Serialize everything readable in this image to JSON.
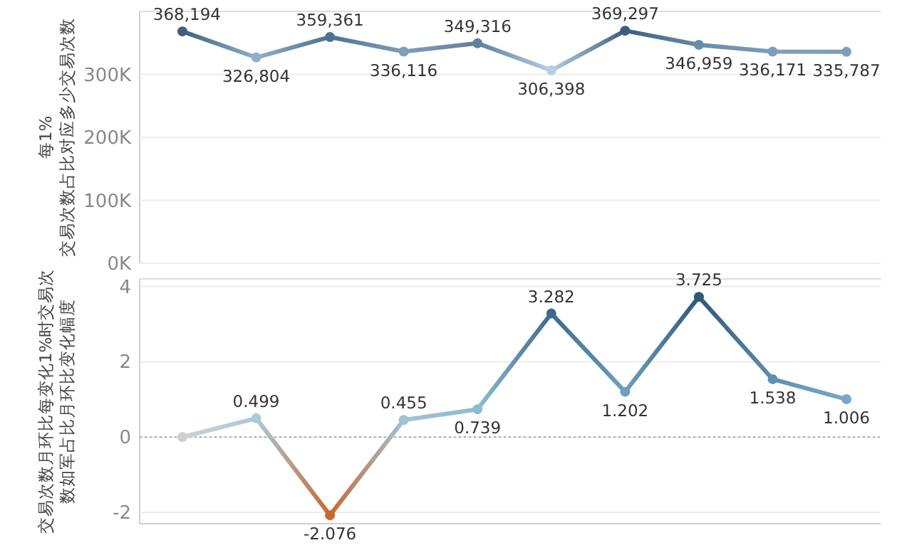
{
  "chart_data": [
    {
      "type": "line",
      "ylabel": "每1%\n交易次数占比对应多少交易次数",
      "categories": [
        null,
        null,
        null,
        null,
        null,
        null,
        null,
        null,
        null,
        null
      ],
      "series": [
        {
          "values": [
            368194,
            326804,
            359361,
            336116,
            349316,
            306398,
            369297,
            346959,
            336171,
            335787
          ],
          "colors": [
            "#3f5f7f",
            "#8fb0c8",
            "#4f7090",
            "#7d9fbb",
            "#5f80a0",
            "#b5cfdf",
            "#3d5d7e",
            "#6a8cab",
            "#7c9ebb",
            "#7ea0bc"
          ],
          "value_labels": [
            "368,194",
            "326,804",
            "359,361",
            "336,116",
            "349,316",
            "306,398",
            "369,297",
            "346,959",
            "336,171",
            "335,787"
          ]
        }
      ],
      "ylim": [
        0,
        400000
      ],
      "yticks": [
        {
          "value": 0,
          "label": "0K"
        },
        {
          "value": 100000,
          "label": "100K"
        },
        {
          "value": 200000,
          "label": "200K"
        },
        {
          "value": 300000,
          "label": "300K"
        }
      ],
      "grid": "y",
      "marker": "circle"
    },
    {
      "type": "line",
      "ylabel": "交易次数月环比每变化1%时交易次数如军占比月环比变化幅度",
      "categories": [
        null,
        null,
        null,
        null,
        null,
        null,
        null,
        null,
        null,
        null
      ],
      "series": [
        {
          "values": [
            0,
            0.499,
            -2.076,
            0.455,
            0.739,
            3.282,
            1.202,
            3.725,
            1.538,
            1.006
          ],
          "colors": [
            "#cfcfcf",
            "#a9cad8",
            "#c8692f",
            "#9fc3d4",
            "#8fbccf",
            "#3e6a90",
            "#6f9fbd",
            "#2f5878",
            "#5d8fb3",
            "#78a8c6"
          ],
          "value_labels": [
            null,
            "0.499",
            "-2.076",
            "0.455",
            "0.739",
            "3.282",
            "1.202",
            "3.725",
            "1.538",
            "1.006"
          ]
        }
      ],
      "ylim": [
        -2.3,
        4.2
      ],
      "yticks": [
        -2,
        0,
        2,
        4
      ],
      "grid": "y",
      "marker": "circle",
      "ref_lines": [
        {
          "axis": "y",
          "value": 0,
          "line_style": "dotted",
          "color": "#aaaaaa"
        }
      ]
    }
  ]
}
